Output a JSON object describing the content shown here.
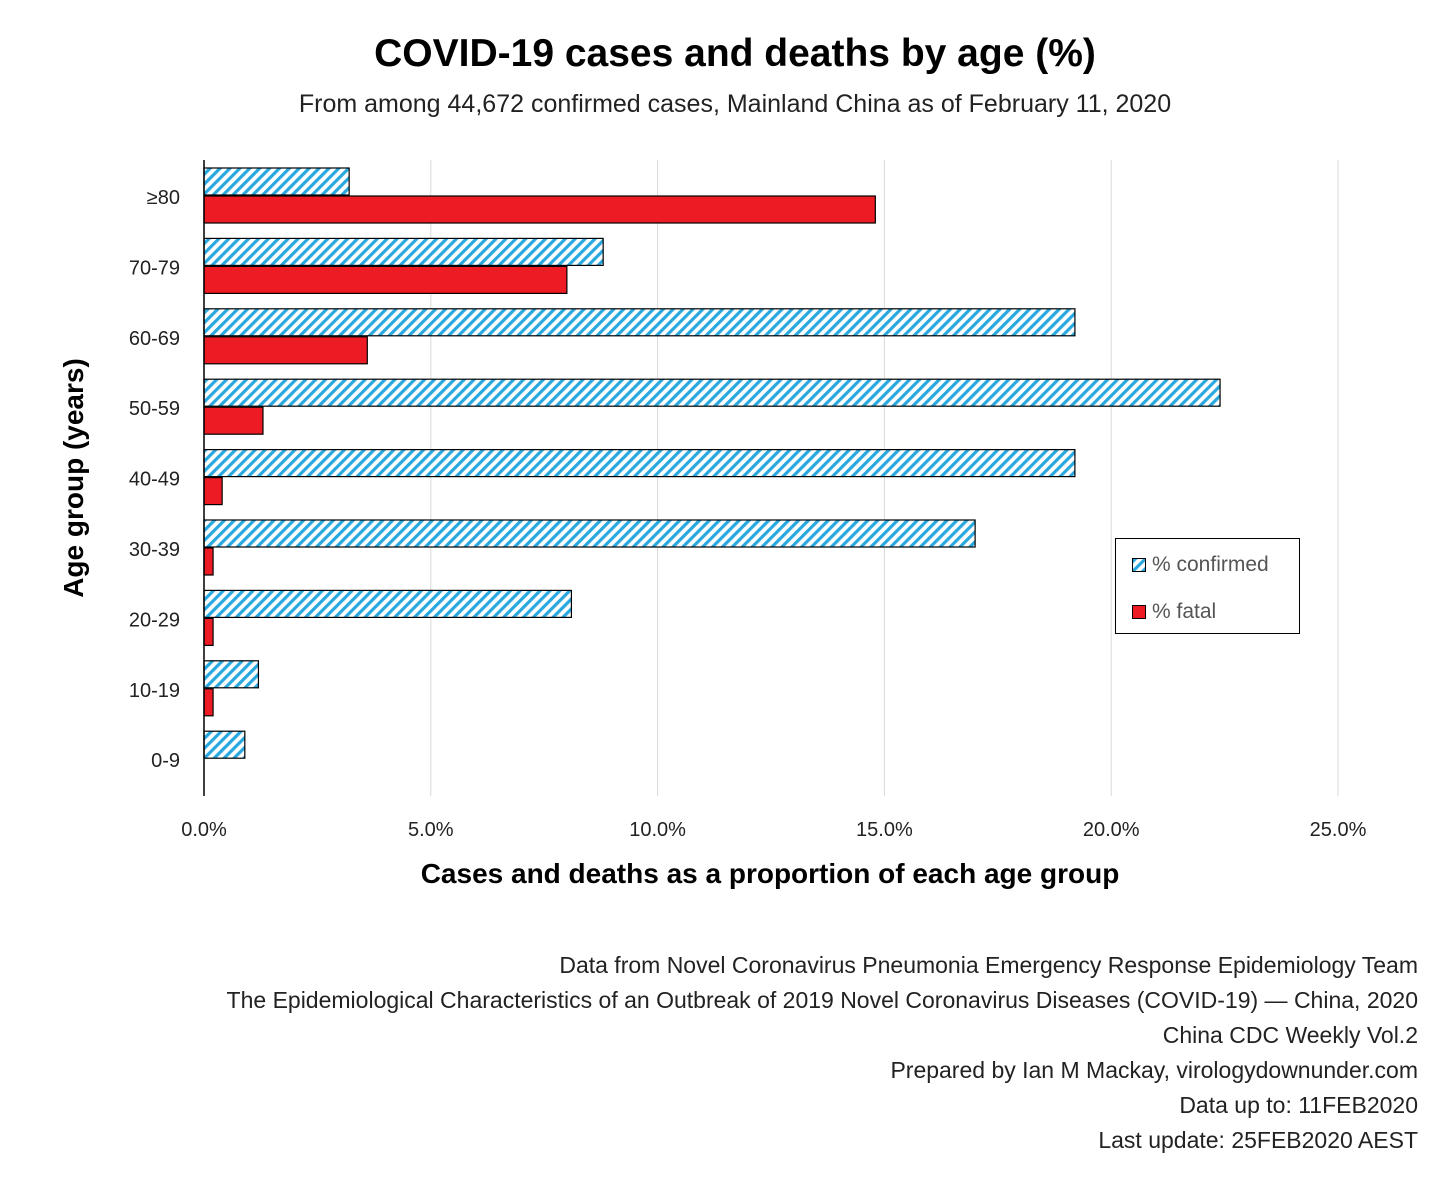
{
  "chart_data": {
    "type": "bar",
    "orientation": "horizontal",
    "title": "COVID-19 cases and deaths by age (%)",
    "subtitle": "From among 44,672 confirmed cases, Mainland China as of February 11, 2020",
    "xlabel": "Cases and deaths as a proportion of each age group",
    "ylabel": "Age group (years)",
    "categories": [
      "≥80",
      "70-79",
      "60-69",
      "50-59",
      "40-49",
      "30-39",
      "20-29",
      "10-19",
      "0-9"
    ],
    "xlim": [
      0,
      25
    ],
    "xticks": [
      "0.0%",
      "5.0%",
      "10.0%",
      "15.0%",
      "20.0%",
      "25.0%"
    ],
    "grid": "vertical",
    "legend_position": "right",
    "series": [
      {
        "name": "% confirmed",
        "color": "#29a8e0",
        "pattern": "diagonal-hatch",
        "values": [
          3.2,
          8.8,
          19.2,
          22.4,
          19.2,
          17.0,
          8.1,
          1.2,
          0.9
        ]
      },
      {
        "name": "% fatal",
        "color": "#ed1c24",
        "pattern": "solid",
        "values": [
          14.8,
          8.0,
          3.6,
          1.3,
          0.4,
          0.2,
          0.2,
          0.2,
          null
        ]
      }
    ]
  },
  "credits": [
    "Data from Novel Coronavirus Pneumonia Emergency Response Epidemiology Team",
    "The Epidemiological Characteristics of an Outbreak of 2019 Novel Coronavirus Diseases (COVID-19) — China, 2020",
    "China CDC Weekly Vol.2",
    "Prepared by Ian M Mackay, virologydownunder.com",
    "Data up to: 11FEB2020",
    "Last update: 25FEB2020 AEST"
  ]
}
